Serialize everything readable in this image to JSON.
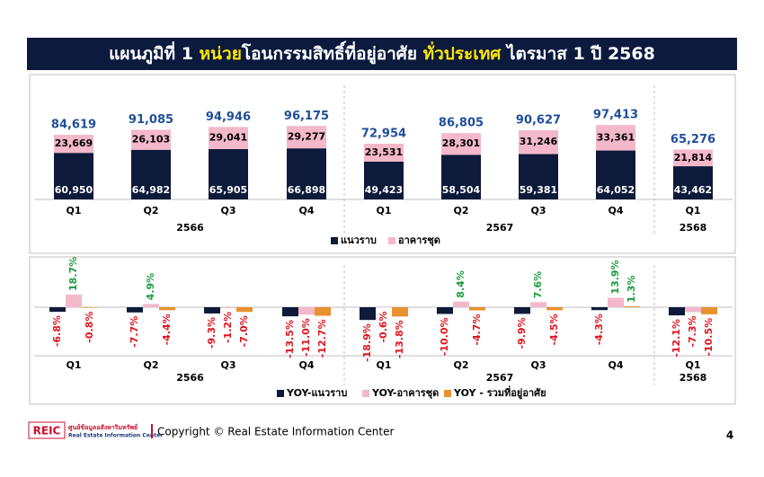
{
  "header": {
    "title_parts": [
      {
        "text": "แผนภูมิที่ 1 ",
        "color": "#ffffff"
      },
      {
        "text": "หน่วย",
        "color": "#ffe600"
      },
      {
        "text": "โอนกรรมสิทธิ์ที่อยู่อาศัย ",
        "color": "#ffffff"
      },
      {
        "text": "ทั่วประเทศ",
        "color": "#ffe600"
      },
      {
        "text": " ไตรมาส 1 ปี 2568",
        "color": "#ffffff"
      }
    ]
  },
  "chart_data": [
    {
      "type": "stacked_bar",
      "groups": [
        {
          "name": "2566",
          "categories": [
            "Q1",
            "Q2",
            "Q3",
            "Q4"
          ]
        },
        {
          "name": "2567",
          "categories": [
            "Q1",
            "Q2",
            "Q3",
            "Q4"
          ]
        },
        {
          "name": "2568",
          "categories": [
            "Q1"
          ]
        }
      ],
      "series": [
        {
          "name": "แนวราบ",
          "color": "#0d1a3a",
          "values": [
            60950,
            64982,
            65905,
            66898,
            49423,
            58504,
            59381,
            64052,
            43462
          ],
          "value_labels": [
            "60,950",
            "64,982",
            "65,905",
            "66,898",
            "49,423",
            "58,504",
            "59,381",
            "64,052",
            "43,462"
          ]
        },
        {
          "name": "อาคารชุด",
          "color": "#f4b8cb",
          "values": [
            23669,
            26103,
            29041,
            29277,
            23531,
            28301,
            31246,
            33361,
            21814
          ],
          "value_labels": [
            "23,669",
            "26,103",
            "29,041",
            "29,277",
            "23,531",
            "28,301",
            "31,246",
            "33,361",
            "21,814"
          ]
        }
      ],
      "totals": [
        {
          "value": 84619,
          "label": "84,619"
        },
        {
          "value": 91085,
          "label": "91,085"
        },
        {
          "value": 94946,
          "label": "94,946"
        },
        {
          "value": 96175,
          "label": "96,175"
        },
        {
          "value": 72954,
          "label": "72,954"
        },
        {
          "value": 86805,
          "label": "86,805"
        },
        {
          "value": 90627,
          "label": "90,627"
        },
        {
          "value": 97413,
          "label": "97,413"
        },
        {
          "value": 65276,
          "label": "65,276"
        }
      ],
      "total_color": "#1f4e9a"
    },
    {
      "type": "grouped_bar",
      "groups": [
        {
          "name": "2566",
          "categories": [
            "Q1",
            "Q2",
            "Q3",
            "Q4"
          ]
        },
        {
          "name": "2567",
          "categories": [
            "Q1",
            "Q2",
            "Q3",
            "Q4"
          ]
        },
        {
          "name": "2568",
          "categories": [
            "Q1"
          ]
        }
      ],
      "positive_label_color": "#1a9e3a",
      "negative_label_color": "#e0141e",
      "series": [
        {
          "name": "YOY-แนวราบ",
          "color": "#0d1a3a",
          "values": [
            -6.8,
            -7.7,
            -9.3,
            -13.5,
            -18.9,
            -10.0,
            -9.9,
            -4.3,
            -12.1
          ],
          "value_labels": [
            "-6.8%",
            "-7.7%",
            "-9.3%",
            "-13.5%",
            "-18.9%",
            "-10.0%",
            "-9.9%",
            "-4.3%",
            "-12.1%"
          ]
        },
        {
          "name": "YOY-อาคารชุด",
          "color": "#f4b8cb",
          "values": [
            18.7,
            4.9,
            -1.2,
            -11.0,
            -0.6,
            8.4,
            7.6,
            13.9,
            -7.3
          ],
          "value_labels": [
            "18.7%",
            "4.9%",
            "-1.2%",
            "-11.0%",
            "-0.6%",
            "8.4%",
            "7.6%",
            "13.9%",
            "-7.3%"
          ]
        },
        {
          "name": "YOY - รวมที่อยู่อาศัย",
          "color": "#e8912e",
          "values": [
            -0.8,
            -4.4,
            -7.0,
            -12.7,
            -13.8,
            -4.7,
            -4.5,
            1.3,
            -10.5
          ],
          "value_labels": [
            "-0.8%",
            "-4.4%",
            "-7.0%",
            "-12.7%",
            "-13.8%",
            "-4.7%",
            "-4.5%",
            "1.3%",
            "-10.5%"
          ]
        }
      ]
    }
  ],
  "footer": {
    "logo": "REIC",
    "org_thai": "ศูนย์ข้อมูลอสังหาริมทรัพย์",
    "org_english": "Real Estate Information Center",
    "copyright": "Copyright © Real Estate Information Center",
    "page": "4"
  }
}
